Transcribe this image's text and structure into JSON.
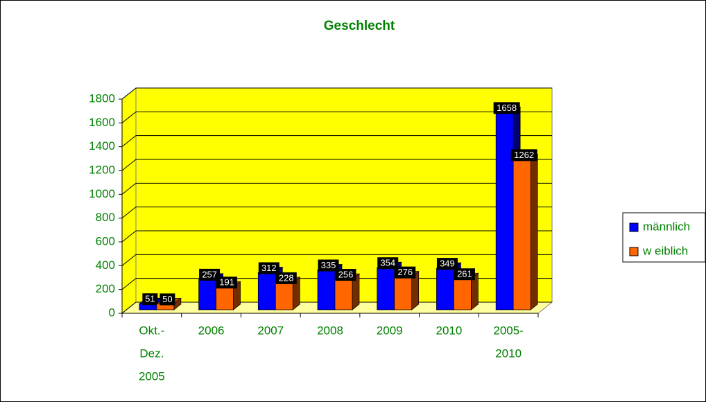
{
  "chart_data": {
    "type": "bar3d",
    "title": "Geschlecht",
    "categories": [
      [
        "Okt.-",
        "Dez.",
        "2005"
      ],
      [
        "2006"
      ],
      [
        "2007"
      ],
      [
        "2008"
      ],
      [
        "2009"
      ],
      [
        "2010"
      ],
      [
        "2005-",
        "2010"
      ]
    ],
    "series": [
      {
        "name": "männlich",
        "color": "#0000ff",
        "values": [
          51,
          257,
          312,
          335,
          354,
          349,
          1658
        ]
      },
      {
        "name": "w eiblich",
        "color": "#ff6600",
        "values": [
          50,
          191,
          228,
          256,
          276,
          261,
          1262
        ]
      }
    ],
    "ylim": [
      0,
      1800
    ],
    "yticks": [
      0,
      200,
      400,
      600,
      800,
      1000,
      1200,
      1400,
      1600,
      1800
    ],
    "grid": true,
    "legend": "right",
    "wall_color": "#ffff00",
    "text_color": "#008000"
  }
}
